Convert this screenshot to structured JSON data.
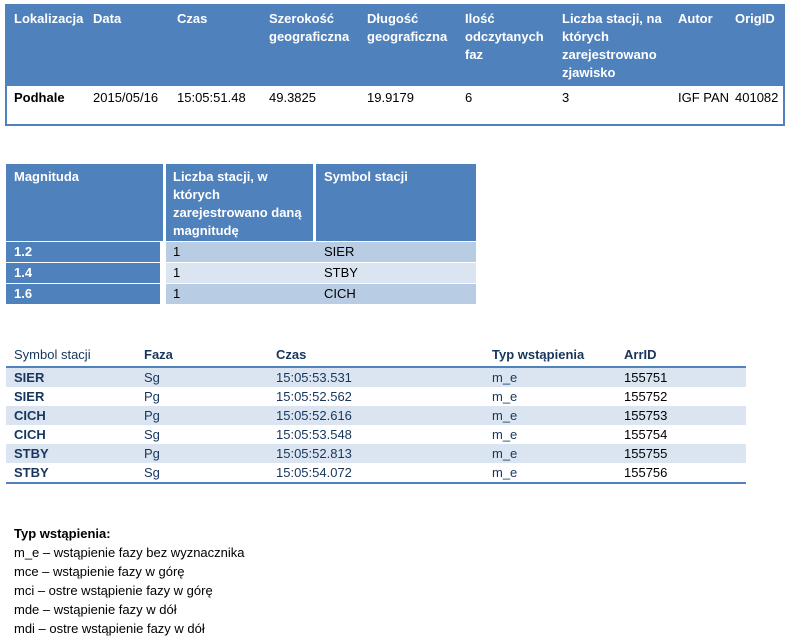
{
  "event_table": {
    "headers": [
      "Lokalizacja",
      "Data",
      "Czas",
      "Szerokość geograficzna",
      "Długość geograficzna",
      "Ilość odczytanych faz",
      "Liczba stacji, na których zarejestrowano zjawisko",
      "Autor",
      "OrigID"
    ],
    "row": [
      "Podhale",
      "2015/05/16",
      "15:05:51.48",
      "49.3825",
      "19.9179",
      "6",
      "3",
      "IGF PAN",
      "401082"
    ]
  },
  "magnitude_table": {
    "headers": [
      "Magnituda",
      "Liczba stacji, w których zarejestrowano daną magnitudę",
      "Symbol stacji"
    ],
    "rows": [
      [
        "1.2",
        "1",
        "SIER"
      ],
      [
        "1.4",
        "1",
        "STBY"
      ],
      [
        "1.6",
        "1",
        "CICH"
      ]
    ]
  },
  "phase_table": {
    "headers": [
      "Symbol stacji",
      "Faza",
      "Czas",
      "Typ wstąpienia",
      "ArrID"
    ],
    "rows": [
      [
        "SIER",
        "Sg",
        "15:05:53.531",
        "m_e",
        "155751"
      ],
      [
        "SIER",
        "Pg",
        "15:05:52.562",
        "m_e",
        "155752"
      ],
      [
        "CICH",
        "Pg",
        "15:05:52.616",
        "m_e",
        "155753"
      ],
      [
        "CICH",
        "Sg",
        "15:05:53.548",
        "m_e",
        "155754"
      ],
      [
        "STBY",
        "Pg",
        "15:05:52.813",
        "m_e",
        "155755"
      ],
      [
        "STBY",
        "Sg",
        "15:05:54.072",
        "m_e",
        "155756"
      ]
    ]
  },
  "legend": {
    "title": "Typ wstąpienia:",
    "items": [
      "m_e – wstąpienie fazy bez wyznacznika",
      "mce – wstąpienie fazy w górę",
      "mci – ostre wstąpienie fazy w górę",
      "mde – wstąpienie fazy w dół",
      "mdi – ostre wstąpienie fazy w dół"
    ]
  },
  "colors": {
    "header_blue": "#4f81bd",
    "band_dark": "#b8cce4",
    "band_light": "#dbe5f1",
    "text_navy": "#17365d"
  }
}
